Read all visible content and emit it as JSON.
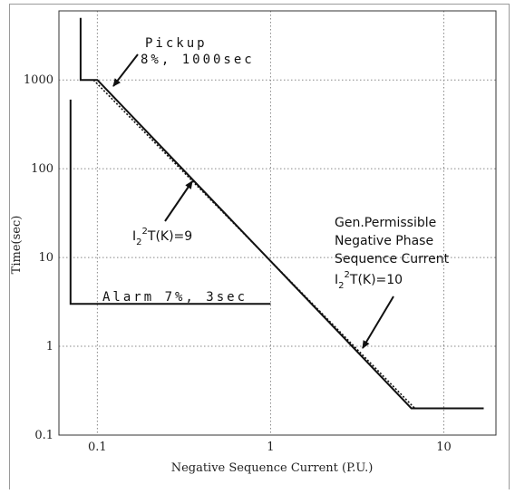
{
  "chart_data": {
    "type": "line",
    "xlabel": "Negative Sequence Current (P.U.)",
    "ylabel": "Time(sec)",
    "x_scale": "log",
    "y_scale": "log",
    "xlim": [
      0.06,
      20
    ],
    "ylim": [
      0.1,
      6000
    ],
    "grid": true,
    "x_ticks": [
      {
        "v": 0.1,
        "label": "0.1"
      },
      {
        "v": 1,
        "label": "1"
      },
      {
        "v": 10,
        "label": "10"
      }
    ],
    "y_ticks": [
      {
        "v": 0.1,
        "label": "0.1"
      },
      {
        "v": 1,
        "label": "1"
      },
      {
        "v": 10,
        "label": "10"
      },
      {
        "v": 100,
        "label": "100"
      },
      {
        "v": 1000,
        "label": "1000"
      }
    ],
    "series": [
      {
        "style": "solid",
        "x": [
          0.08,
          0.08,
          0.1,
          6.5,
          17
        ],
        "y": [
          5000,
          1000,
          1000,
          0.2,
          0.2
        ]
      },
      {
        "style": "dotted",
        "x": [
          0.095,
          6.8
        ],
        "y": [
          1000,
          0.2
        ]
      },
      {
        "style": "solid",
        "x": [
          0.07,
          0.07,
          1
        ],
        "y": [
          600,
          3,
          3
        ]
      }
    ],
    "annotations": {
      "pickup_line1": "Pickup",
      "pickup_line2": "8%, 1000sec",
      "alarm": "Alarm 7%, 3sec",
      "k9": {
        "main": "I",
        "sub": "2",
        "sup": "2",
        "rest": "T(K)=9"
      },
      "gen_line1": "Gen.Permissible",
      "gen_line2": "Negative Phase",
      "gen_line3": "Sequence Current",
      "k10": {
        "main": "I",
        "sub": "2",
        "sup": "2",
        "rest": "T(K)=10"
      }
    }
  }
}
